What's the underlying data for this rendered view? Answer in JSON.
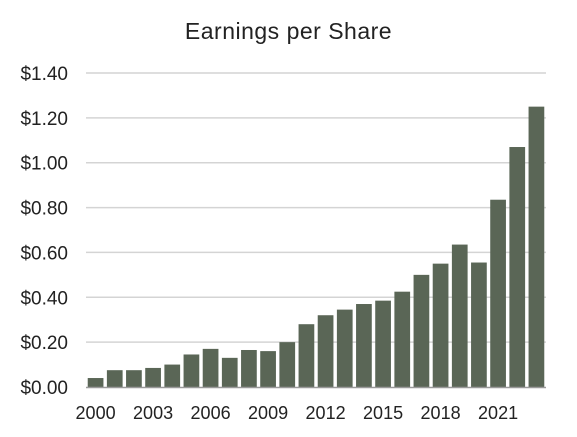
{
  "chart_data": {
    "type": "bar",
    "title": "Earnings per Share",
    "xlabel": "",
    "ylabel": "",
    "categories": [
      "2000",
      "2001",
      "2002",
      "2003",
      "2004",
      "2005",
      "2006",
      "2007",
      "2008",
      "2009",
      "2010",
      "2011",
      "2012",
      "2013",
      "2014",
      "2015",
      "2016",
      "2017",
      "2018",
      "2019",
      "2020",
      "2021",
      "2022",
      "2023"
    ],
    "values": [
      0.04,
      0.075,
      0.075,
      0.085,
      0.1,
      0.145,
      0.17,
      0.13,
      0.165,
      0.16,
      0.2,
      0.28,
      0.32,
      0.345,
      0.37,
      0.385,
      0.425,
      0.5,
      0.55,
      0.635,
      0.555,
      0.835,
      1.07,
      1.25
    ],
    "ylim": [
      0,
      1.4
    ],
    "y_ticks": [
      0,
      0.2,
      0.4,
      0.6,
      0.8,
      1.0,
      1.2,
      1.4
    ],
    "y_tick_labels": [
      "$0.00",
      "$0.20",
      "$0.40",
      "$0.60",
      "$0.80",
      "$1.00",
      "$1.20",
      "$1.40"
    ],
    "x_tick_labels": [
      "2000",
      "2003",
      "2006",
      "2009",
      "2012",
      "2015",
      "2018",
      "2021"
    ],
    "x_tick_indices": [
      0,
      3,
      6,
      9,
      12,
      15,
      18,
      21
    ],
    "grid": true,
    "legend": "none",
    "bar_color": "#5a6656",
    "grid_color": "#d4d4d4",
    "axis_color": "#999999",
    "text_color": "#222222"
  }
}
